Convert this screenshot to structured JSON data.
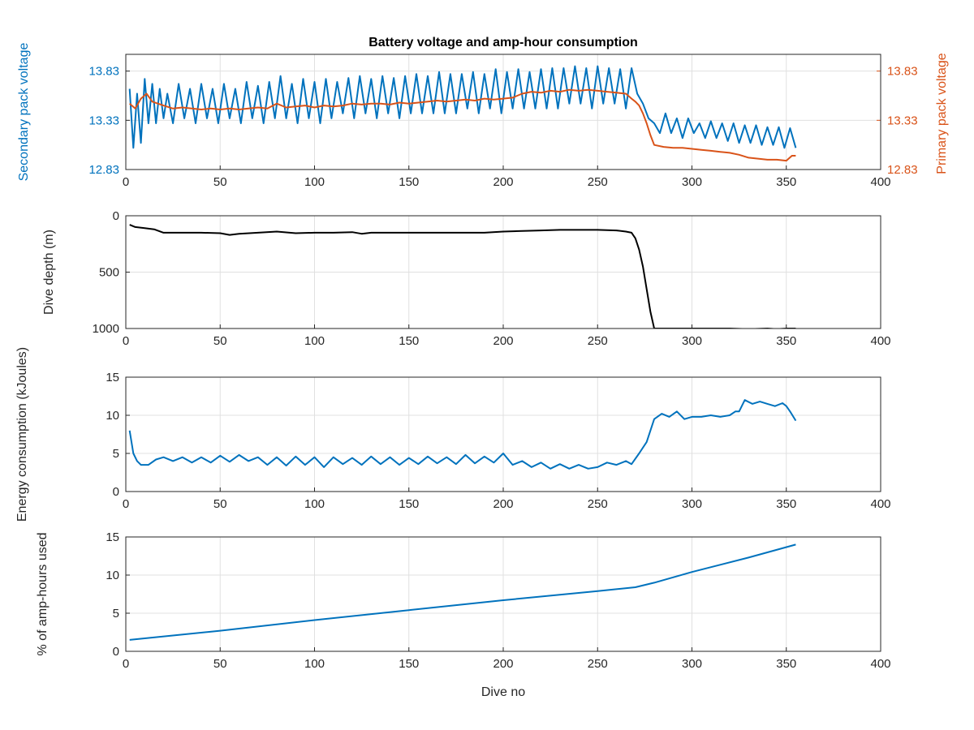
{
  "colors": {
    "blue": "#0072BD",
    "orange": "#D95319",
    "black": "#000000",
    "axis": "#262626",
    "grid": "#e0e0e0"
  },
  "chart_data": [
    {
      "type": "line",
      "title": "Battery voltage and amp-hour consumption",
      "xlabel": "",
      "ylabel": "Secondary pack voltage",
      "ylabel_right": "Primary pack voltage",
      "xlim": [
        0,
        400
      ],
      "ylim": [
        12.83,
        14.0
      ],
      "ylim_right": [
        12.83,
        14.0
      ],
      "x_ticks": [
        "0",
        "50",
        "100",
        "150",
        "200",
        "250",
        "300",
        "350",
        "400"
      ],
      "y_ticks": [
        "12.83",
        "13.33",
        "13.83"
      ],
      "y_ticks_right": [
        "12.83",
        "13.33",
        "13.83"
      ],
      "grid": true,
      "series": [
        {
          "axis": "left",
          "color": "blue",
          "x": [
            2,
            4,
            6,
            8,
            10,
            12,
            14,
            16,
            18,
            20,
            22,
            25,
            28,
            31,
            34,
            37,
            40,
            43,
            46,
            49,
            52,
            55,
            58,
            61,
            64,
            67,
            70,
            73,
            76,
            79,
            82,
            85,
            88,
            91,
            94,
            97,
            100,
            103,
            106,
            109,
            112,
            115,
            118,
            121,
            124,
            127,
            130,
            133,
            136,
            139,
            142,
            145,
            148,
            151,
            154,
            157,
            160,
            163,
            166,
            169,
            172,
            175,
            178,
            181,
            184,
            187,
            190,
            193,
            196,
            199,
            202,
            205,
            208,
            211,
            214,
            217,
            220,
            223,
            226,
            229,
            232,
            235,
            238,
            241,
            244,
            247,
            250,
            253,
            256,
            259,
            262,
            265,
            268,
            271,
            274,
            277,
            280,
            283,
            286,
            289,
            292,
            295,
            298,
            301,
            304,
            307,
            310,
            313,
            316,
            319,
            322,
            325,
            328,
            331,
            334,
            337,
            340,
            343,
            346,
            349,
            352,
            355
          ],
          "values": [
            13.65,
            13.05,
            13.6,
            13.1,
            13.75,
            13.3,
            13.7,
            13.3,
            13.65,
            13.35,
            13.6,
            13.3,
            13.7,
            13.35,
            13.65,
            13.3,
            13.7,
            13.35,
            13.65,
            13.3,
            13.7,
            13.35,
            13.65,
            13.3,
            13.72,
            13.35,
            13.68,
            13.3,
            13.72,
            13.35,
            13.78,
            13.35,
            13.7,
            13.3,
            13.75,
            13.35,
            13.72,
            13.3,
            13.75,
            13.35,
            13.72,
            13.4,
            13.76,
            13.35,
            13.78,
            13.4,
            13.75,
            13.35,
            13.78,
            13.4,
            13.76,
            13.35,
            13.78,
            13.4,
            13.8,
            13.4,
            13.78,
            13.4,
            13.82,
            13.4,
            13.8,
            13.4,
            13.8,
            13.45,
            13.82,
            13.4,
            13.8,
            13.45,
            13.85,
            13.4,
            13.82,
            13.45,
            13.85,
            13.45,
            13.82,
            13.45,
            13.85,
            13.45,
            13.86,
            13.45,
            13.86,
            13.5,
            13.88,
            13.5,
            13.86,
            13.45,
            13.88,
            13.5,
            13.86,
            13.5,
            13.85,
            13.45,
            13.86,
            13.6,
            13.5,
            13.35,
            13.3,
            13.2,
            13.4,
            13.2,
            13.35,
            13.15,
            13.35,
            13.2,
            13.3,
            13.15,
            13.32,
            13.15,
            13.3,
            13.12,
            13.3,
            13.1,
            13.28,
            13.1,
            13.28,
            13.08,
            13.26,
            13.08,
            13.26,
            13.05,
            13.25,
            13.05
          ]
        },
        {
          "axis": "right",
          "color": "orange",
          "x": [
            2,
            5,
            8,
            11,
            14,
            17,
            20,
            25,
            30,
            35,
            40,
            45,
            50,
            55,
            60,
            65,
            70,
            75,
            80,
            85,
            90,
            95,
            100,
            105,
            110,
            115,
            120,
            125,
            130,
            135,
            140,
            145,
            150,
            155,
            160,
            165,
            170,
            175,
            180,
            185,
            190,
            195,
            200,
            205,
            210,
            215,
            220,
            225,
            230,
            235,
            240,
            245,
            250,
            255,
            260,
            265,
            268,
            270,
            272,
            274,
            276,
            278,
            280,
            285,
            290,
            295,
            300,
            305,
            310,
            315,
            320,
            325,
            330,
            335,
            340,
            345,
            350,
            353,
            355
          ],
          "values": [
            13.5,
            13.45,
            13.55,
            13.6,
            13.52,
            13.5,
            13.48,
            13.45,
            13.46,
            13.45,
            13.44,
            13.45,
            13.44,
            13.45,
            13.44,
            13.45,
            13.46,
            13.45,
            13.5,
            13.46,
            13.47,
            13.48,
            13.46,
            13.48,
            13.47,
            13.48,
            13.5,
            13.49,
            13.5,
            13.5,
            13.49,
            13.51,
            13.5,
            13.51,
            13.52,
            13.53,
            13.52,
            13.53,
            13.54,
            13.53,
            13.55,
            13.54,
            13.55,
            13.56,
            13.6,
            13.62,
            13.61,
            13.63,
            13.62,
            13.64,
            13.63,
            13.64,
            13.63,
            13.62,
            13.61,
            13.6,
            13.55,
            13.52,
            13.48,
            13.4,
            13.3,
            13.18,
            13.08,
            13.06,
            13.05,
            13.05,
            13.04,
            13.03,
            13.02,
            13.01,
            13.0,
            12.98,
            12.95,
            12.94,
            12.93,
            12.93,
            12.92,
            12.97,
            12.97
          ]
        }
      ]
    },
    {
      "type": "line",
      "title": "",
      "xlabel": "",
      "ylabel": "Dive depth (m)",
      "xlim": [
        0,
        400
      ],
      "ylim": [
        0,
        1000
      ],
      "y_reversed": true,
      "x_ticks": [
        "0",
        "50",
        "100",
        "150",
        "200",
        "250",
        "300",
        "350",
        "400"
      ],
      "y_ticks": [
        "0",
        "500",
        "1000"
      ],
      "grid": true,
      "series": [
        {
          "axis": "left",
          "color": "black",
          "x": [
            2,
            5,
            10,
            15,
            20,
            30,
            40,
            50,
            55,
            60,
            70,
            80,
            90,
            100,
            110,
            120,
            125,
            130,
            140,
            150,
            160,
            170,
            180,
            190,
            200,
            210,
            220,
            230,
            240,
            250,
            260,
            265,
            268,
            270,
            272,
            274,
            276,
            278,
            280,
            290,
            300,
            320,
            330,
            340,
            345,
            350,
            355
          ],
          "values": [
            80,
            100,
            110,
            120,
            150,
            150,
            150,
            155,
            170,
            160,
            150,
            140,
            155,
            150,
            150,
            145,
            160,
            150,
            150,
            150,
            150,
            150,
            150,
            150,
            140,
            135,
            130,
            125,
            125,
            125,
            130,
            140,
            150,
            200,
            300,
            450,
            650,
            850,
            1000,
            1000,
            1000,
            1000,
            1005,
            1000,
            1005,
            1000,
            1000
          ]
        }
      ]
    },
    {
      "type": "line",
      "title": "",
      "xlabel": "",
      "ylabel": "Energy consumption (kJoules)",
      "xlim": [
        0,
        400
      ],
      "ylim": [
        0,
        15
      ],
      "x_ticks": [
        "0",
        "50",
        "100",
        "150",
        "200",
        "250",
        "300",
        "350",
        "400"
      ],
      "y_ticks": [
        "0",
        "5",
        "10",
        "15"
      ],
      "grid": true,
      "series": [
        {
          "axis": "left",
          "color": "blue",
          "x": [
            2,
            4,
            6,
            8,
            12,
            16,
            20,
            25,
            30,
            35,
            40,
            45,
            50,
            55,
            60,
            65,
            70,
            75,
            80,
            85,
            90,
            95,
            100,
            105,
            110,
            115,
            120,
            125,
            130,
            135,
            140,
            145,
            150,
            155,
            160,
            165,
            170,
            175,
            180,
            185,
            190,
            195,
            200,
            205,
            210,
            215,
            220,
            225,
            230,
            235,
            240,
            245,
            250,
            255,
            260,
            265,
            268,
            272,
            276,
            280,
            284,
            288,
            292,
            296,
            300,
            305,
            310,
            315,
            320,
            323,
            325,
            328,
            332,
            336,
            340,
            344,
            348,
            350,
            352,
            355
          ],
          "values": [
            8,
            5,
            4,
            3.5,
            3.5,
            4.2,
            4.5,
            4.0,
            4.5,
            3.8,
            4.5,
            3.8,
            4.7,
            3.9,
            4.8,
            4.0,
            4.5,
            3.5,
            4.5,
            3.4,
            4.6,
            3.5,
            4.5,
            3.2,
            4.5,
            3.6,
            4.4,
            3.5,
            4.6,
            3.6,
            4.5,
            3.5,
            4.4,
            3.6,
            4.6,
            3.7,
            4.5,
            3.6,
            4.8,
            3.7,
            4.6,
            3.8,
            5.0,
            3.5,
            4.0,
            3.2,
            3.8,
            3.0,
            3.6,
            3.0,
            3.5,
            3.0,
            3.2,
            3.8,
            3.5,
            4.0,
            3.6,
            5.0,
            6.5,
            9.5,
            10.2,
            9.8,
            10.5,
            9.5,
            9.8,
            9.8,
            10.0,
            9.8,
            10.0,
            10.5,
            10.5,
            12.0,
            11.5,
            11.8,
            11.5,
            11.2,
            11.6,
            11.2,
            10.5,
            9.3
          ]
        }
      ]
    },
    {
      "type": "line",
      "title": "",
      "xlabel": "Dive no",
      "ylabel": "% of amp-hours used",
      "xlim": [
        0,
        400
      ],
      "ylim": [
        0,
        15
      ],
      "x_ticks": [
        "0",
        "50",
        "100",
        "150",
        "200",
        "250",
        "300",
        "350",
        "400"
      ],
      "y_ticks": [
        "0",
        "5",
        "10",
        "15"
      ],
      "grid": true,
      "series": [
        {
          "axis": "left",
          "color": "blue",
          "x": [
            2,
            50,
            100,
            150,
            200,
            250,
            270,
            280,
            300,
            330,
            355
          ],
          "values": [
            1.5,
            2.7,
            4.1,
            5.4,
            6.7,
            7.9,
            8.4,
            9.0,
            10.4,
            12.3,
            14.0
          ]
        }
      ]
    }
  ]
}
